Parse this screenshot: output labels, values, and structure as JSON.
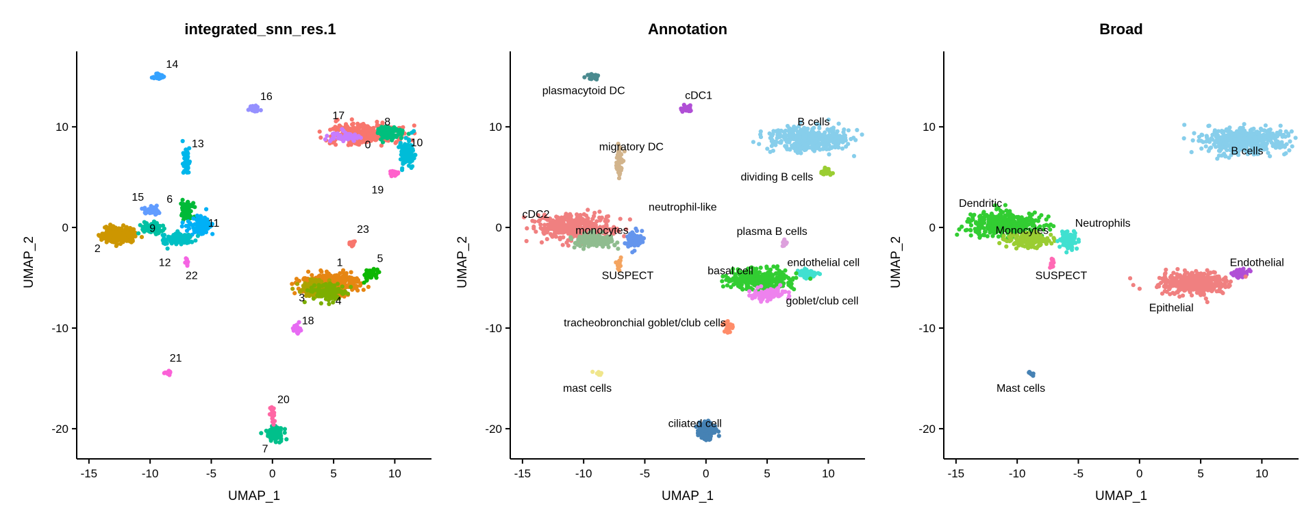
{
  "chart_data": [
    {
      "type": "scatter",
      "title": "integrated_snn_res.1",
      "xlabel": "UMAP_1",
      "ylabel": "UMAP_2",
      "xlim": [
        -16,
        13
      ],
      "ylim": [
        -23,
        17.5
      ],
      "xticks": [
        -15,
        -10,
        -5,
        0,
        5,
        10
      ],
      "yticks": [
        -20,
        -10,
        0,
        10
      ],
      "grid": false,
      "legend": "none",
      "clusters": [
        {
          "label": "0",
          "color": "#F8766D",
          "center": [
            7.5,
            9.3
          ],
          "spread": [
            2.6,
            0.9
          ],
          "n": 320,
          "label_at": [
            7.8,
            8.2
          ]
        },
        {
          "label": "1",
          "color": "#E68613",
          "center": [
            4.8,
            -5.5
          ],
          "spread": [
            2.2,
            0.9
          ],
          "n": 320,
          "label_at": [
            5.5,
            -3.5
          ]
        },
        {
          "label": "2",
          "color": "#CD9600",
          "center": [
            -12.5,
            -0.8
          ],
          "spread": [
            1.4,
            0.7
          ],
          "n": 260,
          "label_at": [
            -14.3,
            -2.1
          ]
        },
        {
          "label": "3",
          "color": "#ABA300",
          "center": [
            3.5,
            -6.2
          ],
          "spread": [
            1.2,
            0.8
          ],
          "n": 120,
          "label_at": [
            2.4,
            -7.0
          ]
        },
        {
          "label": "4",
          "color": "#7CAE00",
          "center": [
            4.5,
            -6.5
          ],
          "spread": [
            1.4,
            0.7
          ],
          "n": 110,
          "label_at": [
            5.4,
            -7.3
          ]
        },
        {
          "label": "5",
          "color": "#0CB702",
          "center": [
            8.0,
            -4.6
          ],
          "spread": [
            0.5,
            0.4
          ],
          "n": 60,
          "label_at": [
            8.8,
            -3.1
          ]
        },
        {
          "label": "6",
          "color": "#00BA38",
          "center": [
            -7.0,
            1.8
          ],
          "spread": [
            0.5,
            0.8
          ],
          "n": 60,
          "label_at": [
            -8.4,
            2.8
          ]
        },
        {
          "label": "7",
          "color": "#00C08B",
          "center": [
            0.2,
            -20.5
          ],
          "spread": [
            0.6,
            0.6
          ],
          "n": 120,
          "label_at": [
            -0.6,
            -22.0
          ]
        },
        {
          "label": "8",
          "color": "#00BF7D",
          "center": [
            9.5,
            9.4
          ],
          "spread": [
            0.9,
            0.6
          ],
          "n": 110,
          "label_at": [
            9.4,
            10.5
          ]
        },
        {
          "label": "9",
          "color": "#00C1A3",
          "center": [
            -9.8,
            0.0
          ],
          "spread": [
            0.8,
            0.6
          ],
          "n": 80,
          "label_at": [
            -9.8,
            -0.1
          ]
        },
        {
          "label": "10",
          "color": "#00BCD8",
          "center": [
            11.0,
            7.5
          ],
          "spread": [
            0.6,
            1.2
          ],
          "n": 90,
          "label_at": [
            11.8,
            8.4
          ]
        },
        {
          "label": "11",
          "color": "#00B0F6",
          "center": [
            -6.0,
            0.2
          ],
          "spread": [
            1.0,
            0.8
          ],
          "n": 90,
          "label_at": [
            -4.8,
            0.4
          ]
        },
        {
          "label": "12",
          "color": "#00BFC4",
          "center": [
            -7.8,
            -1.2
          ],
          "spread": [
            1.2,
            0.5
          ],
          "n": 90,
          "label_at": [
            -8.8,
            -3.5
          ]
        },
        {
          "label": "13",
          "color": "#00B6EB",
          "center": [
            -7.0,
            6.5
          ],
          "spread": [
            0.25,
            1.5
          ],
          "n": 50,
          "label_at": [
            -6.1,
            8.3
          ]
        },
        {
          "label": "14",
          "color": "#35A2FF",
          "center": [
            -9.3,
            15.0
          ],
          "spread": [
            0.4,
            0.25
          ],
          "n": 35,
          "label_at": [
            -8.2,
            16.2
          ]
        },
        {
          "label": "15",
          "color": "#619CFF",
          "center": [
            -9.8,
            1.6
          ],
          "spread": [
            0.6,
            0.5
          ],
          "n": 40,
          "label_at": [
            -11.0,
            3.0
          ]
        },
        {
          "label": "16",
          "color": "#9590FF",
          "center": [
            -1.5,
            11.8
          ],
          "spread": [
            0.35,
            0.3
          ],
          "n": 35,
          "label_at": [
            -0.5,
            13.0
          ]
        },
        {
          "label": "17",
          "color": "#C77CFF",
          "center": [
            6.0,
            9.0
          ],
          "spread": [
            1.4,
            0.5
          ],
          "n": 50,
          "label_at": [
            5.4,
            11.1
          ]
        },
        {
          "label": "18",
          "color": "#E76BF3",
          "center": [
            2.0,
            -10.0
          ],
          "spread": [
            0.3,
            0.6
          ],
          "n": 25,
          "label_at": [
            2.9,
            -9.3
          ]
        },
        {
          "label": "19",
          "color": "#FF61CC",
          "center": [
            10.0,
            5.3
          ],
          "spread": [
            0.3,
            0.3
          ],
          "n": 15,
          "label_at": [
            8.6,
            3.7
          ]
        },
        {
          "label": "20",
          "color": "#FF67A4",
          "center": [
            0.0,
            -18.5
          ],
          "spread": [
            0.2,
            0.6
          ],
          "n": 20,
          "label_at": [
            0.9,
            -17.1
          ]
        },
        {
          "label": "21",
          "color": "#FB61D7",
          "center": [
            -8.6,
            -14.5
          ],
          "spread": [
            0.25,
            0.2
          ],
          "n": 12,
          "label_at": [
            -7.9,
            -13.0
          ]
        },
        {
          "label": "22",
          "color": "#F564E3",
          "center": [
            -7.0,
            -3.4
          ],
          "spread": [
            0.15,
            0.5
          ],
          "n": 15,
          "label_at": [
            -6.6,
            -4.8
          ]
        },
        {
          "label": "23",
          "color": "#F8766D",
          "center": [
            6.5,
            -1.6
          ],
          "spread": [
            0.2,
            0.3
          ],
          "n": 15,
          "label_at": [
            7.4,
            -0.2
          ]
        }
      ]
    },
    {
      "type": "scatter",
      "title": "Annotation",
      "xlabel": "UMAP_1",
      "ylabel": "UMAP_2",
      "xlim": [
        -16,
        13
      ],
      "ylim": [
        -23,
        17.5
      ],
      "xticks": [
        -15,
        -10,
        -5,
        0,
        5,
        10
      ],
      "yticks": [
        -20,
        -10,
        0,
        10
      ],
      "grid": false,
      "legend": "none",
      "clusters": [
        {
          "label": "B cells",
          "color": "#87CEEB",
          "center": [
            8.5,
            8.8
          ],
          "spread": [
            3.0,
            1.1
          ],
          "n": 420,
          "label_at": [
            8.8,
            10.5
          ]
        },
        {
          "label": "dividing B cells",
          "color": "#9ACD32",
          "center": [
            9.8,
            5.5
          ],
          "spread": [
            0.35,
            0.4
          ],
          "n": 25,
          "label_at": [
            5.8,
            5.0
          ]
        },
        {
          "label": "plasmacytoid DC",
          "color": "#4A8A8F",
          "center": [
            -9.2,
            15.0
          ],
          "spread": [
            0.45,
            0.25
          ],
          "n": 35,
          "label_at": [
            -10.0,
            13.6
          ]
        },
        {
          "label": "cDC1",
          "color": "#B04FD6",
          "center": [
            -1.6,
            11.8
          ],
          "spread": [
            0.35,
            0.3
          ],
          "n": 35,
          "label_at": [
            -0.6,
            13.1
          ]
        },
        {
          "label": "migratory DC",
          "color": "#D2B48C",
          "center": [
            -7.1,
            6.3
          ],
          "spread": [
            0.25,
            1.5
          ],
          "n": 50,
          "label_at": [
            -6.1,
            8.0
          ]
        },
        {
          "label": "cDC2",
          "color": "#F08080",
          "center": [
            -10.8,
            0.0
          ],
          "spread": [
            2.8,
            1.1
          ],
          "n": 420,
          "label_at": [
            -13.9,
            1.3
          ]
        },
        {
          "label": "monocytes",
          "color": "#8FBC8F",
          "center": [
            -9.2,
            -1.3
          ],
          "spread": [
            1.5,
            0.6
          ],
          "n": 150,
          "label_at": [
            -8.5,
            -0.3
          ]
        },
        {
          "label": "neutrophil-like",
          "color": "#6495ED",
          "center": [
            -5.8,
            -1.2
          ],
          "spread": [
            0.6,
            0.7
          ],
          "n": 80,
          "label_at": [
            -1.9,
            2.0
          ]
        },
        {
          "label": "SUSPECT",
          "color": "#F4A460",
          "center": [
            -7.1,
            -3.5
          ],
          "spread": [
            0.15,
            0.5
          ],
          "n": 15,
          "label_at": [
            -6.4,
            -4.8
          ]
        },
        {
          "label": "plasma B cells",
          "color": "#DDA0DD",
          "center": [
            6.4,
            -1.6
          ],
          "spread": [
            0.2,
            0.3
          ],
          "n": 15,
          "label_at": [
            5.4,
            -0.4
          ]
        },
        {
          "label": "endothelial cell",
          "color": "#40E0D0",
          "center": [
            8.3,
            -4.6
          ],
          "spread": [
            0.6,
            0.4
          ],
          "n": 60,
          "label_at": [
            9.6,
            -3.5
          ]
        },
        {
          "label": "basal cell",
          "color": "#32CD32",
          "center": [
            4.5,
            -5.2
          ],
          "spread": [
            2.3,
            0.9
          ],
          "n": 360,
          "label_at": [
            2.0,
            -4.3
          ]
        },
        {
          "label": "goblet/club cell",
          "color": "#EE82EE",
          "center": [
            5.0,
            -6.6
          ],
          "spread": [
            1.4,
            0.6
          ],
          "n": 90,
          "label_at": [
            9.5,
            -7.3
          ]
        },
        {
          "label": "tracheobronchial goblet/club cells",
          "color": "#FF8C69",
          "center": [
            1.8,
            -10.0
          ],
          "spread": [
            0.3,
            0.6
          ],
          "n": 25,
          "label_at": [
            -5.0,
            -9.5
          ]
        },
        {
          "label": "mast cells",
          "color": "#F0E68C",
          "center": [
            -8.8,
            -14.5
          ],
          "spread": [
            0.25,
            0.2
          ],
          "n": 12,
          "label_at": [
            -9.7,
            -16.0
          ]
        },
        {
          "label": "ciliated cell",
          "color": "#4682B4",
          "center": [
            0.0,
            -20.3
          ],
          "spread": [
            0.6,
            0.7
          ],
          "n": 140,
          "label_at": [
            -0.9,
            -19.5
          ]
        }
      ]
    },
    {
      "type": "scatter",
      "title": "Broad",
      "xlabel": "UMAP_1",
      "ylabel": "UMAP_2",
      "xlim": [
        -16,
        13
      ],
      "ylim": [
        -23,
        17.5
      ],
      "xticks": [
        -15,
        -10,
        -5,
        0,
        5,
        10
      ],
      "yticks": [
        -20,
        -10,
        0,
        10
      ],
      "grid": false,
      "legend": "none",
      "clusters": [
        {
          "label": "B cells",
          "color": "#87CEEB",
          "center": [
            8.7,
            8.6
          ],
          "spread": [
            3.1,
            1.2
          ],
          "n": 440,
          "label_at": [
            8.8,
            7.6
          ]
        },
        {
          "label": "Dendritic",
          "color": "#32CD32",
          "center": [
            -11.0,
            0.3
          ],
          "spread": [
            2.6,
            1.0
          ],
          "n": 420,
          "label_at": [
            -13.0,
            2.4
          ]
        },
        {
          "label": "Monocytes",
          "color": "#9ACD32",
          "center": [
            -9.0,
            -1.3
          ],
          "spread": [
            1.5,
            0.6
          ],
          "n": 160,
          "label_at": [
            -9.6,
            -0.3
          ]
        },
        {
          "label": "Neutrophils",
          "color": "#40E0D0",
          "center": [
            -5.8,
            -1.3
          ],
          "spread": [
            0.6,
            0.7
          ],
          "n": 80,
          "label_at": [
            -3.0,
            0.4
          ]
        },
        {
          "label": "SUSPECT",
          "color": "#FF69B4",
          "center": [
            -7.1,
            -3.5
          ],
          "spread": [
            0.15,
            0.5
          ],
          "n": 15,
          "label_at": [
            -6.4,
            -4.8
          ]
        },
        {
          "label": "Endothelial",
          "color": "#B04FD6",
          "center": [
            8.2,
            -4.6
          ],
          "spread": [
            0.6,
            0.4
          ],
          "n": 60,
          "label_at": [
            9.6,
            -3.5
          ]
        },
        {
          "label": "Epithelial",
          "color": "#F08080",
          "center": [
            4.5,
            -5.6
          ],
          "spread": [
            2.4,
            1.0
          ],
          "n": 420,
          "label_at": [
            2.6,
            -8.0
          ]
        },
        {
          "label": "Mast cells",
          "color": "#4682B4",
          "center": [
            -8.9,
            -14.5
          ],
          "spread": [
            0.25,
            0.2
          ],
          "n": 12,
          "label_at": [
            -9.7,
            -16.0
          ]
        }
      ]
    }
  ]
}
